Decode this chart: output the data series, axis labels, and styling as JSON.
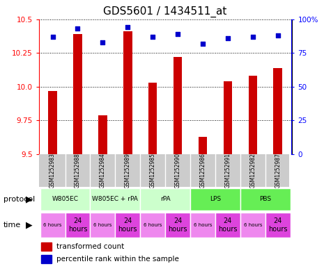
{
  "title": "GDS5601 / 1434511_at",
  "samples": [
    "GSM1252983",
    "GSM1252988",
    "GSM1252984",
    "GSM1252989",
    "GSM1252985",
    "GSM1252990",
    "GSM1252986",
    "GSM1252991",
    "GSM1252982",
    "GSM1252987"
  ],
  "transformed_counts": [
    9.97,
    10.39,
    9.79,
    10.41,
    10.03,
    10.22,
    9.63,
    10.04,
    10.08,
    10.14
  ],
  "percentile_ranks": [
    87,
    93,
    83,
    94,
    87,
    89,
    82,
    86,
    87,
    88
  ],
  "ylim": [
    9.5,
    10.5
  ],
  "yticks_left": [
    9.5,
    9.75,
    10.0,
    10.25,
    10.5
  ],
  "yticks_right": [
    0,
    25,
    50,
    75,
    100
  ],
  "bar_color": "#cc0000",
  "dot_color": "#0000cc",
  "bar_bottom": 9.5,
  "proto_data": [
    {
      "label": "W805EC",
      "start": 0,
      "end": 2,
      "color": "#ccffcc"
    },
    {
      "label": "W805EC + rPA",
      "start": 2,
      "end": 4,
      "color": "#ccffcc"
    },
    {
      "label": "rPA",
      "start": 4,
      "end": 6,
      "color": "#ccffcc"
    },
    {
      "label": "LPS",
      "start": 6,
      "end": 8,
      "color": "#66ee55"
    },
    {
      "label": "PBS",
      "start": 8,
      "end": 10,
      "color": "#66ee55"
    }
  ],
  "times": [
    "6 hours",
    "24\nhours",
    "6 hours",
    "24\nhours",
    "6 hours",
    "24\nhours",
    "6 hours",
    "24\nhours",
    "6 hours",
    "24\nhours"
  ],
  "time_color_light": "#ee88ee",
  "time_color_dark": "#dd44dd",
  "legend_red_label": "transformed count",
  "legend_blue_label": "percentile rank within the sample",
  "protocol_label": "protocol",
  "time_label": "time",
  "sample_bg_color": "#cccccc",
  "fig_width": 4.65,
  "fig_height": 3.93,
  "dpi": 100
}
